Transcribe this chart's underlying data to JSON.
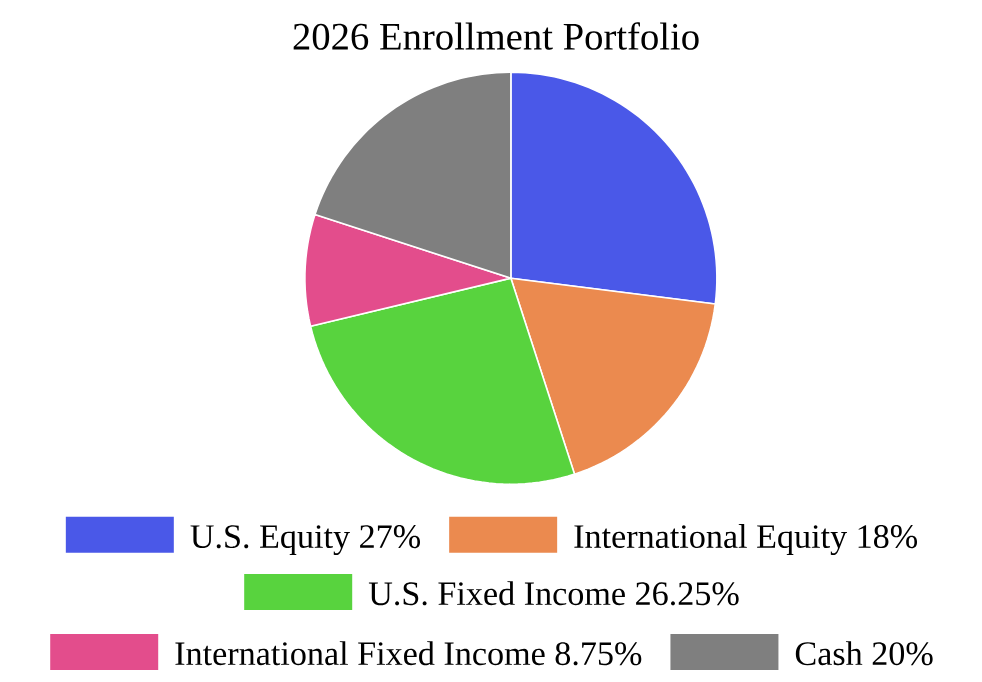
{
  "chart_data": {
    "type": "pie",
    "title": "2026 Enrollment Portfolio",
    "categories": [
      "U.S. Equity",
      "International Equity",
      "U.S. Fixed Income",
      "International Fixed Income",
      "Cash"
    ],
    "values": [
      27,
      18,
      26.25,
      8.75,
      20
    ],
    "value_labels": [
      "27%",
      "18%",
      "26.25%",
      "8.75%",
      "20%"
    ],
    "colors": [
      "#4a58e8",
      "#eb8a4f",
      "#58d33e",
      "#e34d8c",
      "#7f7f7f"
    ],
    "legend": "bottom"
  }
}
